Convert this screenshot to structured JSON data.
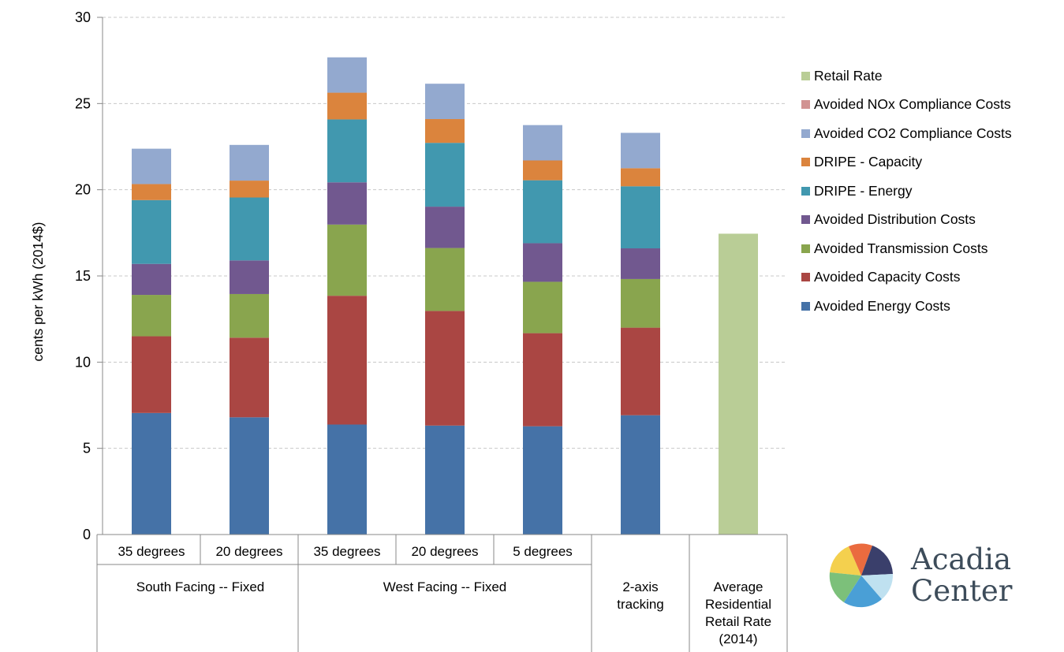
{
  "chart_data": {
    "type": "bar",
    "stacked": true,
    "title": "",
    "ylabel": "cents per kWh (2014$)",
    "ylim": [
      0,
      30
    ],
    "yticks": [
      0,
      5,
      10,
      15,
      20,
      25,
      30
    ],
    "grid": true,
    "legend_position": "right",
    "categories": [
      "35 degrees",
      "20 degrees",
      "35 degrees",
      "20 degrees",
      "5 degrees",
      "2-axis tracking",
      "Average Residential Retail Rate (2014)"
    ],
    "category_groups": [
      {
        "label": "South Facing -- Fixed",
        "span": 2
      },
      {
        "label": "West Facing -- Fixed",
        "span": 3
      },
      {
        "label": "",
        "span": 1
      },
      {
        "label": "",
        "span": 1
      }
    ],
    "series": [
      {
        "name": "Avoided Energy Costs",
        "color": "#4572a7",
        "values": [
          7.05,
          6.8,
          6.38,
          6.32,
          6.28,
          6.92,
          0
        ]
      },
      {
        "name": "Avoided Capacity Costs",
        "color": "#aa4643",
        "values": [
          4.45,
          4.62,
          7.47,
          6.65,
          5.4,
          5.08,
          0
        ]
      },
      {
        "name": "Avoided Transmission Costs",
        "color": "#89a54e",
        "values": [
          2.4,
          2.53,
          4.13,
          3.65,
          2.98,
          2.82,
          0
        ]
      },
      {
        "name": "Avoided Distribution Costs",
        "color": "#71588f",
        "values": [
          1.8,
          1.95,
          2.45,
          2.4,
          2.24,
          1.78,
          0
        ]
      },
      {
        "name": "DRIPE - Energy",
        "color": "#4198af",
        "values": [
          3.7,
          3.65,
          3.65,
          3.7,
          3.65,
          3.6,
          0
        ]
      },
      {
        "name": "DRIPE - Capacity",
        "color": "#db843d",
        "values": [
          0.93,
          0.98,
          1.55,
          1.38,
          1.15,
          1.05,
          0
        ]
      },
      {
        "name": "Avoided CO2 Compliance Costs",
        "color": "#93a9cf",
        "values": [
          2.05,
          2.07,
          2.05,
          2.05,
          2.05,
          2.05,
          0
        ]
      },
      {
        "name": "Avoided NOx Compliance Costs",
        "color": "#d19392",
        "values": [
          0,
          0,
          0,
          0,
          0,
          0,
          0
        ]
      },
      {
        "name": "Retail Rate",
        "color": "#b9cd96",
        "values": [
          0,
          0,
          0,
          0,
          0,
          0,
          17.45
        ]
      }
    ]
  },
  "logo": {
    "line1": "Acadia",
    "line2": "Center",
    "colors": [
      "#f4d04e",
      "#ea6b3f",
      "#3a3f6b",
      "#7cc07a",
      "#4a9fd6",
      "#bfe1f0"
    ]
  }
}
